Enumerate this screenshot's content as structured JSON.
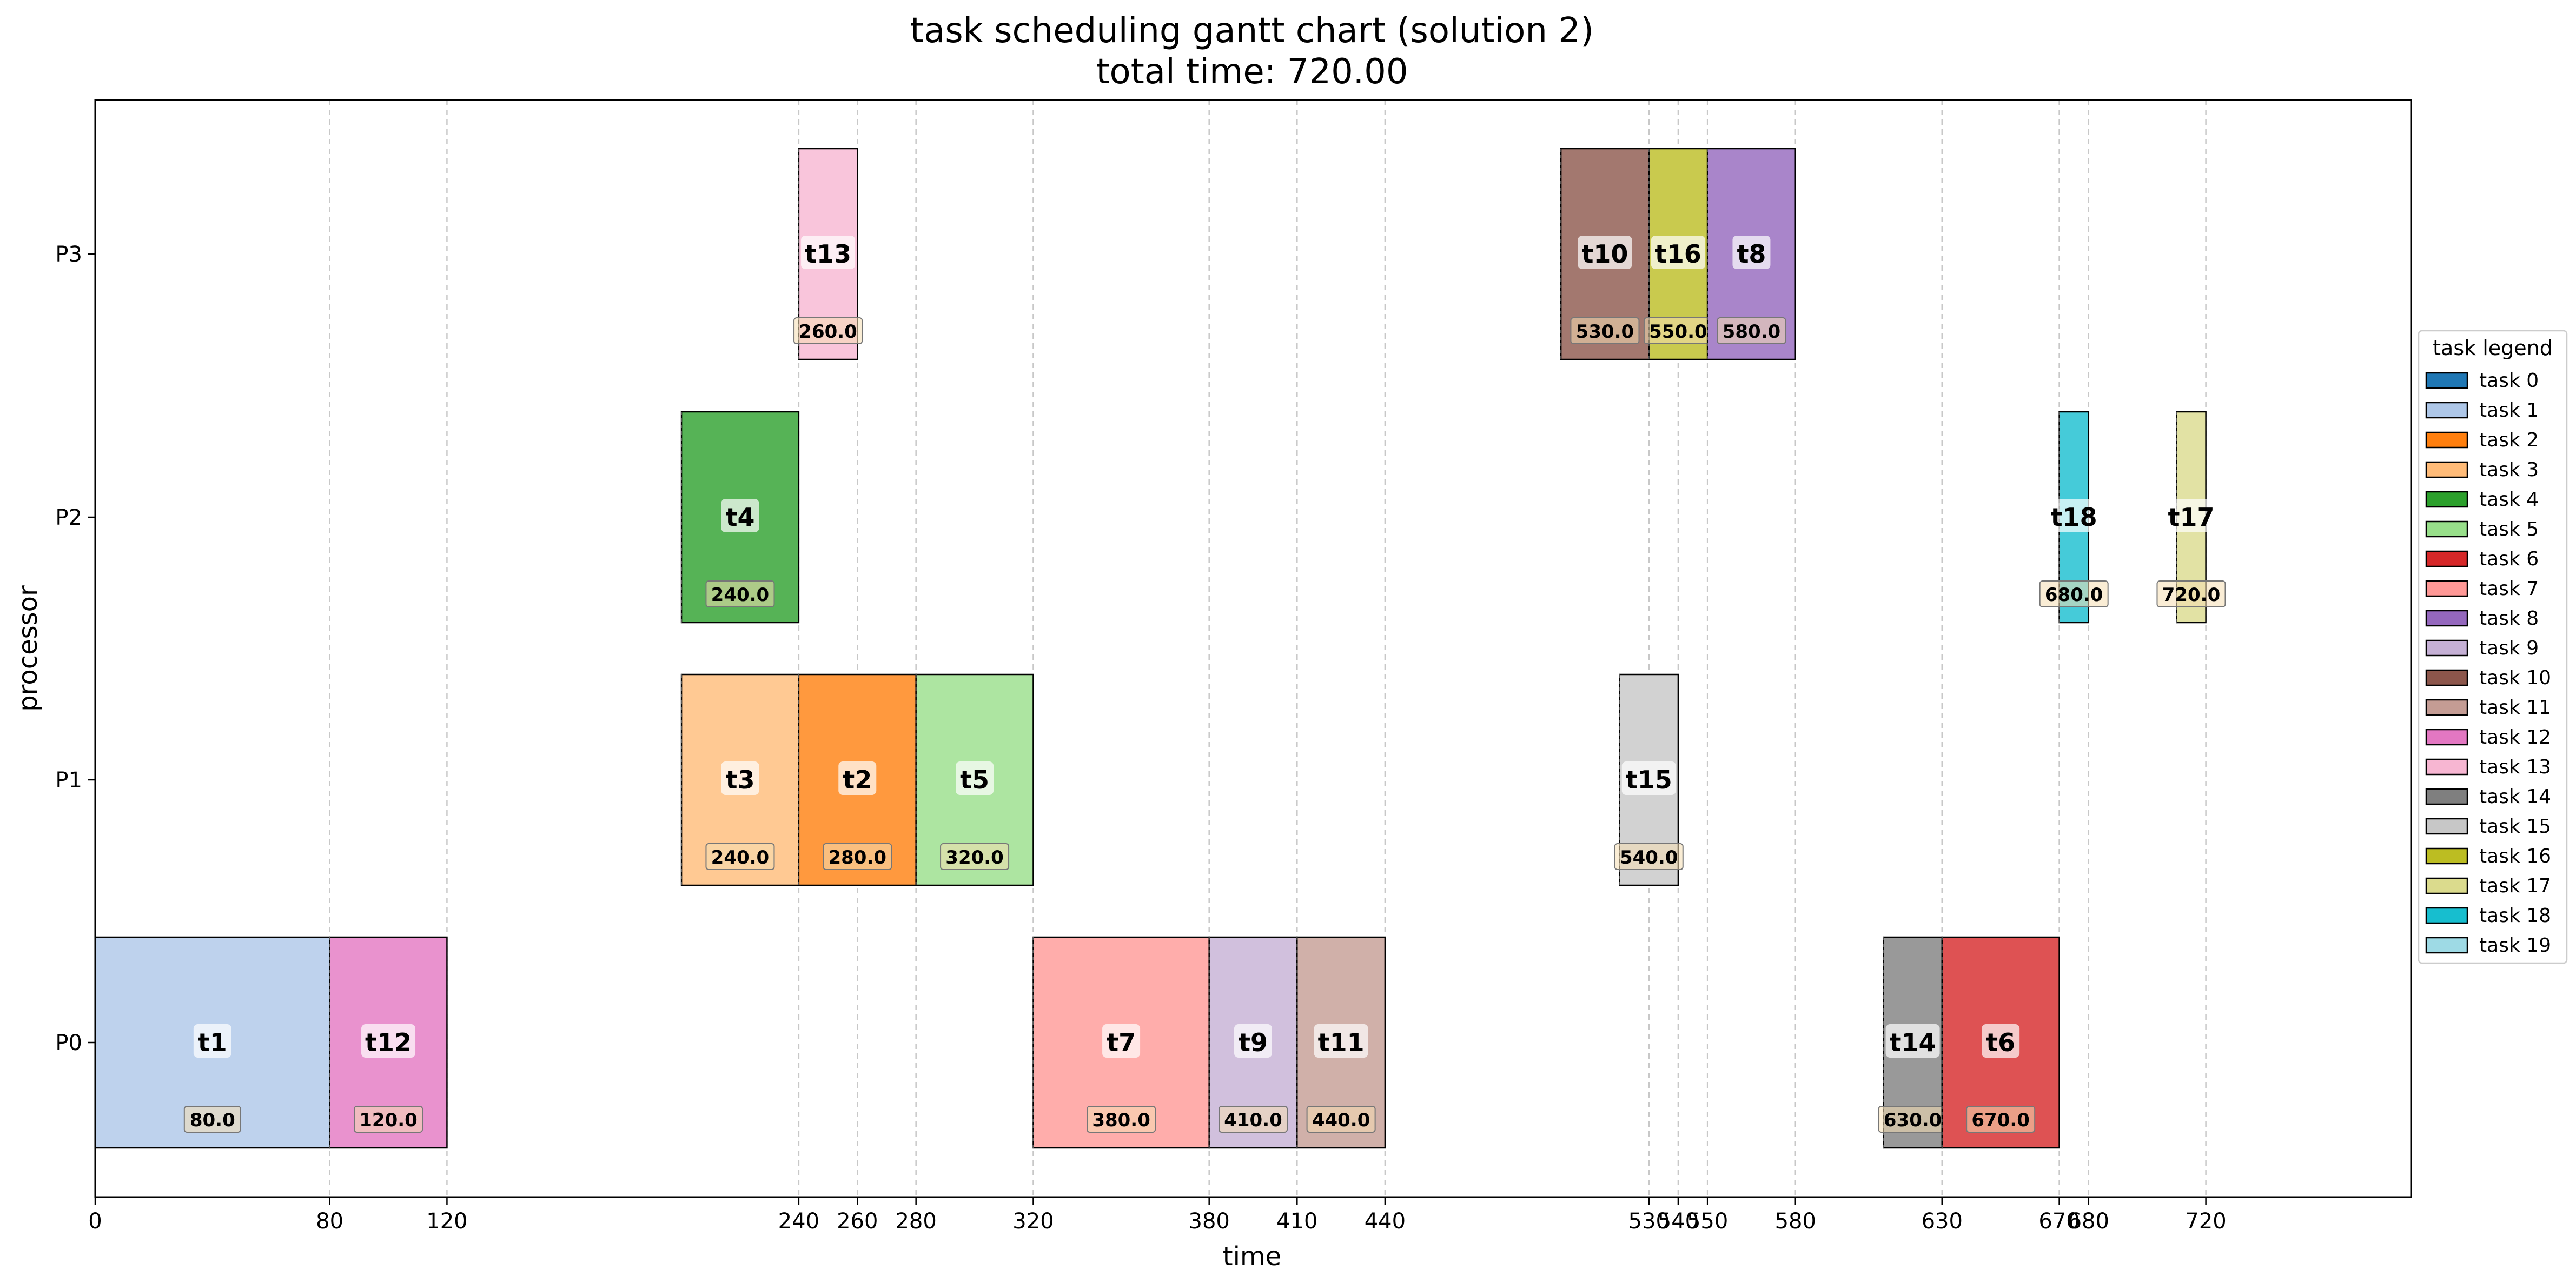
{
  "chart_data": {
    "type": "gantt",
    "title": "task scheduling gantt chart (solution 2)",
    "subtitle": "total time: 720.00",
    "xlabel": "time",
    "ylabel": "processor",
    "xlim": [
      0,
      790
    ],
    "processors": [
      "P0",
      "P1",
      "P2",
      "P3"
    ],
    "x_ticks": [
      0,
      80,
      120,
      240,
      260,
      280,
      320,
      380,
      410,
      440,
      530,
      540,
      550,
      580,
      630,
      670,
      680,
      720
    ],
    "x_tick_labels": [
      "0",
      "80",
      "120",
      "240",
      "260",
      "280",
      "320",
      "380",
      "410",
      "440",
      "530",
      "540",
      "550",
      "580",
      "630",
      "670",
      "680",
      "720"
    ],
    "grid": "vertical dashed at tick positions",
    "bars": [
      {
        "task": 1,
        "label": "t1",
        "processor": "P0",
        "start": 0,
        "end": 80,
        "end_label": "80.0"
      },
      {
        "task": 12,
        "label": "t12",
        "processor": "P0",
        "start": 80,
        "end": 120,
        "end_label": "120.0"
      },
      {
        "task": 7,
        "label": "t7",
        "processor": "P0",
        "start": 320,
        "end": 380,
        "end_label": "380.0"
      },
      {
        "task": 9,
        "label": "t9",
        "processor": "P0",
        "start": 380,
        "end": 410,
        "end_label": "410.0"
      },
      {
        "task": 11,
        "label": "t11",
        "processor": "P0",
        "start": 410,
        "end": 440,
        "end_label": "440.0"
      },
      {
        "task": 14,
        "label": "t14",
        "processor": "P0",
        "start": 610,
        "end": 630,
        "end_label": "630.0"
      },
      {
        "task": 6,
        "label": "t6",
        "processor": "P0",
        "start": 630,
        "end": 670,
        "end_label": "670.0"
      },
      {
        "task": 3,
        "label": "t3",
        "processor": "P1",
        "start": 200,
        "end": 240,
        "end_label": "240.0"
      },
      {
        "task": 2,
        "label": "t2",
        "processor": "P1",
        "start": 240,
        "end": 280,
        "end_label": "280.0"
      },
      {
        "task": 5,
        "label": "t5",
        "processor": "P1",
        "start": 280,
        "end": 320,
        "end_label": "320.0"
      },
      {
        "task": 15,
        "label": "t15",
        "processor": "P1",
        "start": 520,
        "end": 540,
        "end_label": "540.0"
      },
      {
        "task": 4,
        "label": "t4",
        "processor": "P2",
        "start": 200,
        "end": 240,
        "end_label": "240.0"
      },
      {
        "task": 18,
        "label": "t18",
        "processor": "P2",
        "start": 670,
        "end": 680,
        "end_label": "680.0"
      },
      {
        "task": 17,
        "label": "t17",
        "processor": "P2",
        "start": 710,
        "end": 720,
        "end_label": "720.0"
      },
      {
        "task": 13,
        "label": "t13",
        "processor": "P3",
        "start": 240,
        "end": 260,
        "end_label": "260.0"
      },
      {
        "task": 10,
        "label": "t10",
        "processor": "P3",
        "start": 500,
        "end": 530,
        "end_label": "530.0"
      },
      {
        "task": 16,
        "label": "t16",
        "processor": "P3",
        "start": 530,
        "end": 550,
        "end_label": "550.0"
      },
      {
        "task": 8,
        "label": "t8",
        "processor": "P3",
        "start": 550,
        "end": 580,
        "end_label": "580.0"
      }
    ],
    "legend": {
      "title": "task legend",
      "placement": "right, outside plot",
      "entries": [
        "task 0",
        "task 1",
        "task 2",
        "task 3",
        "task 4",
        "task 5",
        "task 6",
        "task 7",
        "task 8",
        "task 9",
        "task 10",
        "task 11",
        "task 12",
        "task 13",
        "task 14",
        "task 15",
        "task 16",
        "task 17",
        "task 18",
        "task 19"
      ]
    },
    "colors": [
      "#1f77b4",
      "#aec7e8",
      "#ff7f0e",
      "#ffbb78",
      "#2ca02c",
      "#98df8a",
      "#d62728",
      "#ff9896",
      "#9467bd",
      "#c5b0d5",
      "#8c564b",
      "#c49c94",
      "#e377c2",
      "#f7b6d2",
      "#7f7f7f",
      "#c7c7c7",
      "#bcbd22",
      "#dbdb8d",
      "#17becf",
      "#9edae5"
    ]
  }
}
